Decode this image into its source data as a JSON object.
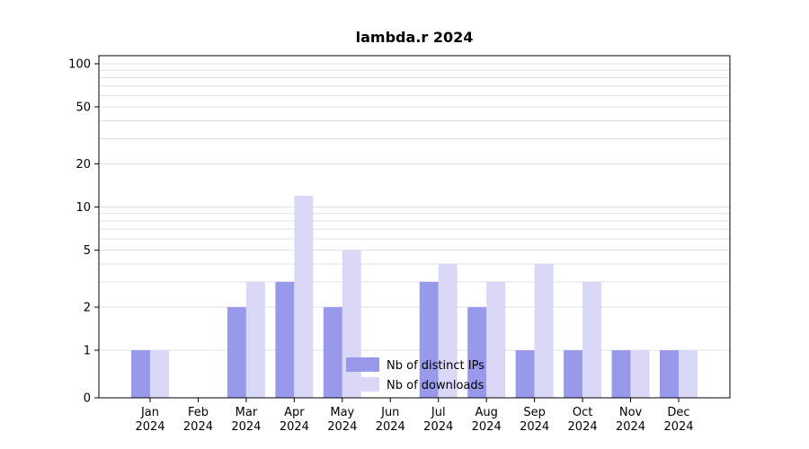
{
  "chart_data": {
    "type": "bar",
    "title": "lambda.r 2024",
    "categories": [
      "Jan 2024",
      "Feb 2024",
      "Mar 2024",
      "Apr 2024",
      "May 2024",
      "Jun 2024",
      "Jul 2024",
      "Aug 2024",
      "Sep 2024",
      "Oct 2024",
      "Nov 2024",
      "Dec 2024"
    ],
    "series": [
      {
        "name": "Nb of distinct IPs",
        "color": "#9999eb",
        "values": [
          1,
          0,
          2,
          3,
          2,
          0,
          3,
          2,
          1,
          1,
          1,
          1
        ]
      },
      {
        "name": "Nb of downloads",
        "color": "#d9d9f7",
        "values": [
          1,
          0,
          3,
          12,
          5,
          0,
          4,
          3,
          4,
          3,
          1,
          1
        ]
      }
    ],
    "yscale": "log",
    "y_ticks": [
      0,
      1,
      2,
      5,
      10,
      20,
      50,
      100
    ],
    "ylim": [
      0,
      114
    ],
    "grid": true,
    "grid_color": "#e0e0e0",
    "axis_color": "#000000",
    "legend_position": "bottom-center-inside"
  }
}
